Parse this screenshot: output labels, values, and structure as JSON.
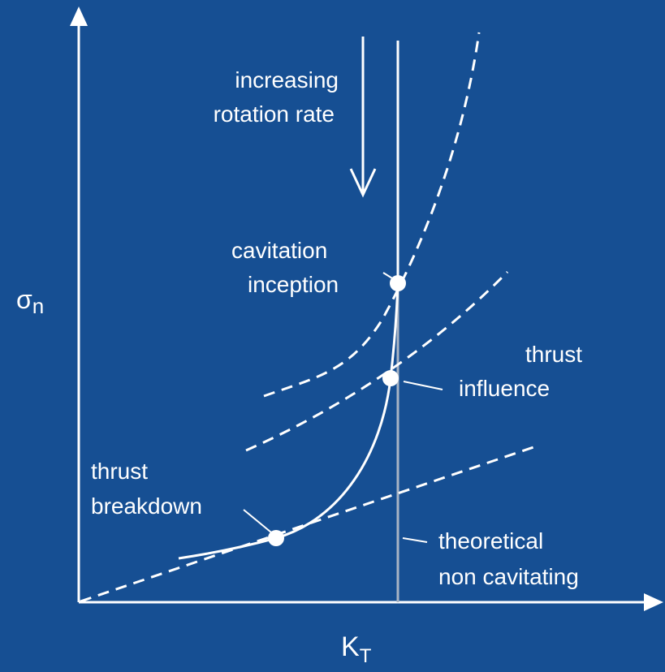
{
  "axes": {
    "y_label": {
      "symbol": "σ",
      "subscript": "n"
    },
    "x_label": {
      "symbol": "K",
      "subscript": "T"
    }
  },
  "annotations": {
    "rotation": [
      "increasing",
      "rotation rate"
    ],
    "inception": [
      "cavitation",
      "inception"
    ],
    "influence": [
      "thrust",
      "influence"
    ],
    "breakdown": [
      "thrust",
      "breakdown"
    ],
    "theoretical": [
      "theoretical",
      "non cavitating"
    ]
  }
}
